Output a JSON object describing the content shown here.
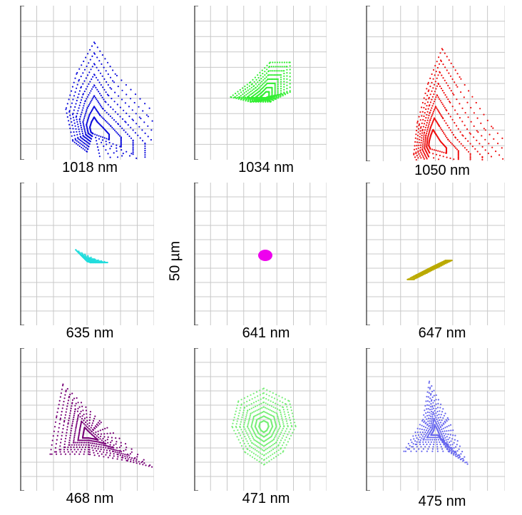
{
  "figure": {
    "scale_bar_label": "50 µm"
  },
  "chart_data": [
    {
      "type": "scatter",
      "title": "1018 nm",
      "color": "#1010dd",
      "shape": "leaf",
      "points": [
        [
          28,
          17
        ],
        [
          28,
          7
        ],
        [
          17,
          -5
        ],
        [
          6,
          -16
        ],
        [
          0,
          -25
        ],
        [
          -5,
          -16
        ],
        [
          -8,
          -6
        ],
        [
          -6,
          3
        ],
        [
          -2,
          6
        ]
      ]
    },
    {
      "type": "scatter",
      "title": "1034 nm",
      "color": "#33ee33",
      "shape": "cone",
      "points": [
        [
          5,
          -7
        ],
        [
          5,
          -1
        ],
        [
          1,
          1
        ],
        [
          -3,
          1
        ],
        [
          -7,
          0
        ],
        [
          -3,
          -3
        ],
        [
          1,
          -7
        ]
      ]
    },
    {
      "type": "scatter",
      "title": "1050 nm",
      "color": "#ee1010",
      "shape": "leaf",
      "points": [
        [
          28,
          17
        ],
        [
          28,
          7
        ],
        [
          17,
          -5
        ],
        [
          8,
          -19
        ],
        [
          3,
          -27
        ],
        [
          -1,
          -17
        ],
        [
          -4,
          -6
        ],
        [
          -5,
          3
        ],
        [
          -2,
          9
        ]
      ]
    },
    {
      "type": "scatter",
      "title": "635 nm",
      "color": "#22dddd",
      "shape": "triangle",
      "points": [
        [
          -2,
          -2
        ],
        [
          2,
          0
        ],
        [
          3,
          0
        ],
        [
          -1,
          -1
        ]
      ]
    },
    {
      "type": "scatter",
      "title": "641 nm",
      "color": "#ee00ee",
      "shape": "dot",
      "points": [
        [
          -1,
          0
        ],
        [
          0,
          -1
        ],
        [
          1,
          0
        ],
        [
          0,
          1
        ]
      ]
    },
    {
      "type": "scatter",
      "title": "647 nm",
      "color": "#bbaa00",
      "shape": "stroke",
      "points": [
        [
          3,
          -1
        ],
        [
          1,
          0
        ],
        [
          -1,
          1
        ],
        [
          -3,
          2
        ],
        [
          -4,
          2
        ],
        [
          -2,
          1
        ],
        [
          0,
          0
        ],
        [
          2,
          -1
        ]
      ]
    },
    {
      "type": "scatter",
      "title": "468 nm",
      "color": "#770077",
      "shape": "triangle",
      "points": [
        [
          -4,
          -8
        ],
        [
          2,
          -2
        ],
        [
          10,
          5
        ],
        [
          6,
          4
        ],
        [
          0,
          3
        ],
        [
          -6,
          3
        ],
        [
          -5,
          -3
        ]
      ]
    },
    {
      "type": "scatter",
      "title": "471 nm",
      "color": "#77ee77",
      "shape": "disc",
      "points": [
        [
          0,
          -6
        ],
        [
          4,
          -4
        ],
        [
          5,
          0
        ],
        [
          3,
          4
        ],
        [
          0,
          6
        ],
        [
          -3,
          4
        ],
        [
          -5,
          0
        ],
        [
          -4,
          -4
        ]
      ]
    },
    {
      "type": "scatter",
      "title": "475 nm",
      "color": "#6666ee",
      "shape": "triangle",
      "points": [
        [
          -1,
          -8
        ],
        [
          2,
          -2
        ],
        [
          5,
          5
        ],
        [
          2,
          3
        ],
        [
          -5,
          3
        ],
        [
          -2,
          -2
        ]
      ]
    }
  ]
}
